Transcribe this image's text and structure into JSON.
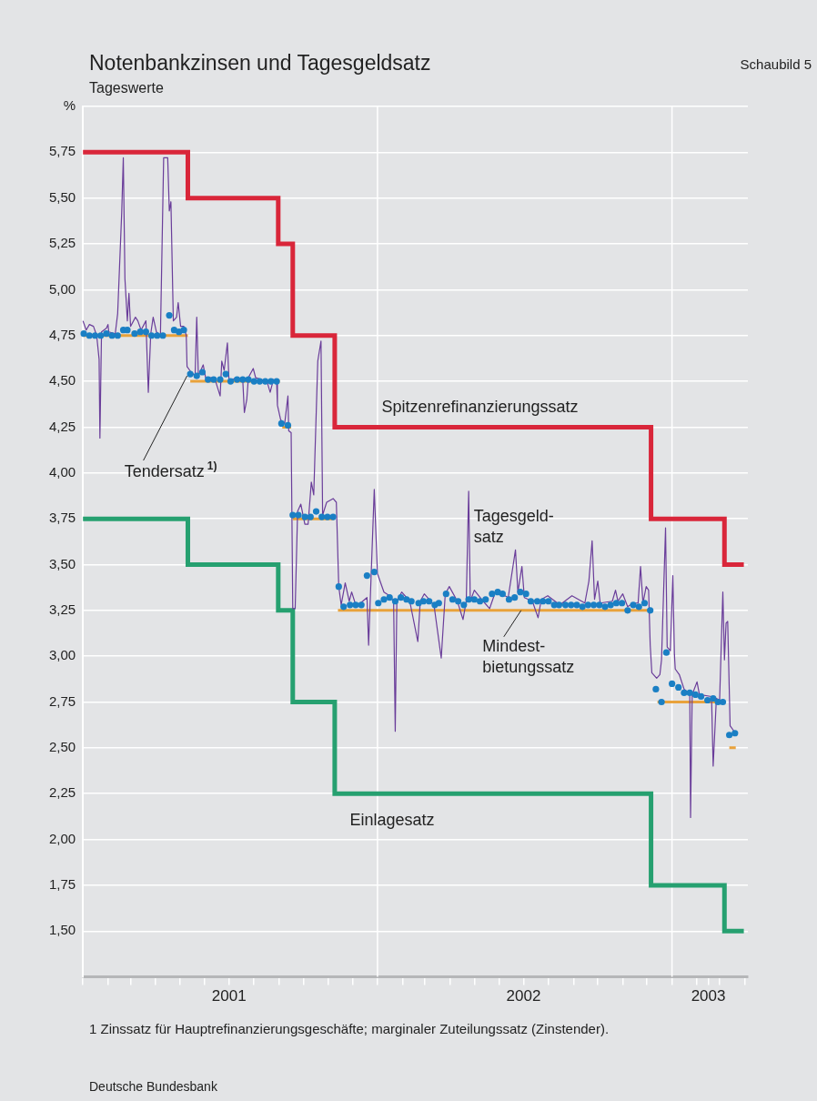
{
  "chart_data": {
    "type": "line",
    "title": "Notenbankzinsen und Tagesgeldsatz",
    "subtitle": "Tageswerte",
    "xlim": [
      "2001-01-01",
      "2003-04-05"
    ],
    "xticks": [
      {
        "value": "2001-01-01",
        "label": null
      },
      {
        "value": "2001-02-01",
        "label": null
      },
      {
        "value": "2001-03-01",
        "label": null
      },
      {
        "value": "2001-04-01",
        "label": null
      },
      {
        "value": "2001-05-01",
        "label": null
      },
      {
        "value": "2001-06-01",
        "label": null
      },
      {
        "value": "2001-07-01",
        "label": "2001"
      },
      {
        "value": "2001-08-01",
        "label": null
      },
      {
        "value": "2001-09-01",
        "label": null
      },
      {
        "value": "2001-10-01",
        "label": null
      },
      {
        "value": "2001-11-01",
        "label": null
      },
      {
        "value": "2001-12-01",
        "label": null
      },
      {
        "value": "2002-01-01",
        "label": null
      },
      {
        "value": "2002-02-01",
        "label": null
      },
      {
        "value": "2002-03-01",
        "label": null
      },
      {
        "value": "2002-04-01",
        "label": null
      },
      {
        "value": "2002-05-01",
        "label": null
      },
      {
        "value": "2002-06-01",
        "label": null
      },
      {
        "value": "2002-07-01",
        "label": "2002"
      },
      {
        "value": "2002-08-01",
        "label": null
      },
      {
        "value": "2002-09-01",
        "label": null
      },
      {
        "value": "2002-10-01",
        "label": null
      },
      {
        "value": "2002-11-01",
        "label": null
      },
      {
        "value": "2002-12-01",
        "label": null
      },
      {
        "value": "2003-01-01",
        "label": null
      },
      {
        "value": "2003-02-01",
        "label": null
      },
      {
        "value": "2003-02-15",
        "label": "2003"
      },
      {
        "value": "2003-03-01",
        "label": null
      },
      {
        "value": "2003-04-01",
        "label": null
      }
    ],
    "ylim": [
      1.25,
      6.0
    ],
    "yticks": [
      {
        "value": 1.5,
        "label": "1,50"
      },
      {
        "value": 1.75,
        "label": "1,75"
      },
      {
        "value": 2.0,
        "label": "2,00"
      },
      {
        "value": 2.25,
        "label": "2,25"
      },
      {
        "value": 2.5,
        "label": "2,50"
      },
      {
        "value": 2.75,
        "label": "2,75"
      },
      {
        "value": 3.0,
        "label": "3,00"
      },
      {
        "value": 3.25,
        "label": "3,25"
      },
      {
        "value": 3.5,
        "label": "3,50"
      },
      {
        "value": 3.75,
        "label": "3,75"
      },
      {
        "value": 4.0,
        "label": "4,00"
      },
      {
        "value": 4.25,
        "label": "4,25"
      },
      {
        "value": 4.5,
        "label": "4,50"
      },
      {
        "value": 4.75,
        "label": "4,75"
      },
      {
        "value": 5.0,
        "label": "5,00"
      },
      {
        "value": 5.25,
        "label": "5,25"
      },
      {
        "value": 5.5,
        "label": "5,50"
      },
      {
        "value": 5.75,
        "label": "5,75"
      },
      {
        "value": 6.0,
        "label": "%"
      }
    ],
    "grid": "y",
    "legend": false,
    "ref_lines": [
      {
        "axis": "x",
        "value": "2002-01-01",
        "color": "#ffffff"
      },
      {
        "axis": "x",
        "value": "2003-01-01",
        "color": "#ffffff"
      }
    ],
    "series": [
      {
        "type": "step",
        "color": "#d9263a",
        "x": [
          "2001-01-01",
          "2001-05-11",
          "2001-08-31",
          "2001-09-18",
          "2001-11-09",
          "2002-12-06",
          "2003-03-07",
          "2003-03-31"
        ],
        "values": [
          5.75,
          5.5,
          5.25,
          4.75,
          4.25,
          3.75,
          3.5,
          3.5
        ]
      },
      {
        "type": "step",
        "color": "#26a070",
        "x": [
          "2001-01-01",
          "2001-05-11",
          "2001-08-31",
          "2001-09-18",
          "2001-11-09",
          "2002-12-06",
          "2003-03-07",
          "2003-03-31"
        ],
        "values": [
          3.75,
          3.5,
          3.25,
          2.75,
          2.25,
          1.75,
          1.5,
          1.5
        ]
      },
      {
        "type": "line",
        "color": "#e9a23b",
        "x": [
          "2001-01-01",
          "2001-05-11",
          "2001-05-12",
          "2001-05-14",
          "2001-09-02",
          "2001-09-03",
          "2001-09-05",
          "2001-09-16",
          "2001-09-17",
          "2001-09-18",
          "2001-11-08",
          "2001-11-11",
          "2001-11-13",
          "2002-12-05",
          "2002-12-09",
          "2002-12-14",
          "2003-02-28",
          "2003-03-06",
          "2003-03-13",
          "2003-03-21"
        ],
        "values": [
          4.75,
          4.75,
          null,
          4.5,
          4.5,
          null,
          4.25,
          4.25,
          null,
          3.75,
          3.75,
          null,
          3.25,
          3.25,
          null,
          2.75,
          2.75,
          null,
          2.5,
          2.5
        ]
      },
      {
        "type": "line",
        "color": "#6a3d9a",
        "x": [
          "2001-01-01",
          "2001-01-05",
          "2001-01-09",
          "2001-01-14",
          "2001-01-18",
          "2001-01-21",
          "2001-01-22",
          "2001-01-24",
          "2001-01-30",
          "2001-02-01",
          "2001-02-02",
          "2001-02-10",
          "2001-02-13",
          "2001-02-18",
          "2001-02-20",
          "2001-02-22",
          "2001-02-25",
          "2001-02-27",
          "2001-03-01",
          "2001-03-07",
          "2001-03-10",
          "2001-03-14",
          "2001-03-20",
          "2001-03-23",
          "2001-03-26",
          "2001-03-29",
          "2001-04-02",
          "2001-04-07",
          "2001-04-11",
          "2001-04-16",
          "2001-04-18",
          "2001-04-20",
          "2001-04-23",
          "2001-04-27",
          "2001-04-29",
          "2001-05-02",
          "2001-05-06",
          "2001-05-09",
          "2001-05-10",
          "2001-05-15",
          "2001-05-20",
          "2001-05-22",
          "2001-05-24",
          "2001-05-27",
          "2001-05-30",
          "2001-06-02",
          "2001-06-13",
          "2001-06-20",
          "2001-06-22",
          "2001-06-25",
          "2001-06-29",
          "2001-07-01",
          "2001-07-10",
          "2001-07-18",
          "2001-07-20",
          "2001-07-23",
          "2001-07-25",
          "2001-07-31",
          "2001-08-03",
          "2001-08-17",
          "2001-08-21",
          "2001-08-25",
          "2001-08-29",
          "2001-08-30",
          "2001-09-03",
          "2001-09-08",
          "2001-09-12",
          "2001-09-13",
          "2001-09-16",
          "2001-09-18",
          "2001-09-21",
          "2001-09-24",
          "2001-09-28",
          "2001-10-03",
          "2001-10-07",
          "2001-10-11",
          "2001-10-14",
          "2001-10-19",
          "2001-10-23",
          "2001-10-25",
          "2001-10-30",
          "2001-11-07",
          "2001-11-11",
          "2001-11-14",
          "2001-11-17",
          "2001-11-22",
          "2001-11-27",
          "2001-11-30",
          "2001-12-05",
          "2001-12-11",
          "2001-12-19",
          "2001-12-21",
          "2001-12-28",
          "2002-01-01",
          "2002-01-09",
          "2002-01-16",
          "2002-01-21",
          "2002-01-23",
          "2002-01-25",
          "2002-01-31",
          "2002-02-10",
          "2002-02-20",
          "2002-02-23",
          "2002-02-28",
          "2002-03-12",
          "2002-03-21",
          "2002-03-26",
          "2002-03-31",
          "2002-04-10",
          "2002-04-17",
          "2002-04-21",
          "2002-04-24",
          "2002-04-26",
          "2002-05-01",
          "2002-05-12",
          "2002-05-20",
          "2002-05-27",
          "2002-06-08",
          "2002-06-12",
          "2002-06-21",
          "2002-06-24",
          "2002-06-29",
          "2002-07-02",
          "2002-07-12",
          "2002-07-19",
          "2002-07-23",
          "2002-07-31",
          "2002-08-15",
          "2002-08-30",
          "2002-09-15",
          "2002-09-20",
          "2002-09-24",
          "2002-09-27",
          "2002-10-01",
          "2002-10-04",
          "2002-10-19",
          "2002-10-23",
          "2002-10-26",
          "2002-11-01",
          "2002-11-07",
          "2002-11-14",
          "2002-11-20",
          "2002-11-23",
          "2002-11-26",
          "2002-11-30",
          "2002-12-03",
          "2002-12-05",
          "2002-12-07",
          "2002-12-13",
          "2002-12-17",
          "2002-12-19",
          "2002-12-24",
          "2002-12-26",
          "2002-12-30",
          "2003-01-02",
          "2003-01-04",
          "2003-01-05",
          "2003-01-10",
          "2003-01-16",
          "2003-01-22",
          "2003-01-23",
          "2003-01-24",
          "2003-01-26",
          "2003-02-01",
          "2003-02-04",
          "2003-02-19",
          "2003-02-21",
          "2003-02-25",
          "2003-03-01",
          "2003-03-05",
          "2003-03-07",
          "2003-03-09",
          "2003-03-11",
          "2003-03-14",
          "2003-03-19"
        ],
        "values": [
          4.83,
          4.78,
          4.81,
          4.8,
          4.75,
          4.62,
          4.19,
          4.77,
          4.79,
          4.81,
          4.77,
          4.76,
          4.87,
          5.42,
          5.72,
          5.06,
          4.83,
          4.98,
          4.8,
          4.85,
          4.83,
          4.78,
          4.83,
          4.44,
          4.76,
          4.85,
          4.77,
          4.75,
          5.72,
          5.72,
          5.43,
          5.48,
          4.83,
          4.85,
          4.93,
          4.8,
          4.8,
          4.75,
          4.58,
          4.55,
          4.53,
          4.85,
          4.53,
          4.56,
          4.59,
          4.52,
          4.52,
          4.42,
          4.61,
          4.56,
          4.71,
          4.5,
          4.52,
          4.51,
          4.33,
          4.4,
          4.52,
          4.57,
          4.52,
          4.5,
          4.44,
          4.51,
          4.5,
          4.37,
          4.29,
          4.27,
          4.42,
          4.23,
          4.22,
          3.26,
          3.26,
          3.79,
          3.83,
          3.72,
          3.72,
          3.95,
          3.88,
          4.61,
          4.72,
          3.77,
          3.84,
          3.86,
          3.84,
          3.38,
          3.28,
          3.4,
          3.3,
          3.35,
          3.28,
          3.29,
          3.32,
          3.06,
          3.91,
          3.45,
          3.35,
          3.33,
          3.3,
          2.59,
          3.3,
          3.35,
          3.3,
          3.08,
          3.3,
          3.34,
          3.28,
          2.99,
          3.34,
          3.38,
          3.3,
          3.2,
          3.3,
          3.9,
          3.3,
          3.36,
          3.3,
          3.26,
          3.35,
          3.33,
          3.32,
          3.58,
          3.35,
          3.49,
          3.32,
          3.3,
          3.21,
          3.31,
          3.33,
          3.28,
          3.33,
          3.29,
          3.41,
          3.63,
          3.31,
          3.41,
          3.29,
          3.3,
          3.36,
          3.3,
          3.34,
          3.27,
          3.29,
          3.29,
          3.49,
          3.29,
          3.38,
          3.36,
          3.06,
          2.91,
          2.88,
          2.9,
          2.98,
          3.7,
          3.05,
          3.03,
          3.44,
          3.01,
          2.93,
          2.9,
          2.82,
          2.8,
          2.81,
          2.12,
          2.79,
          2.86,
          2.79,
          2.78,
          2.4,
          2.77,
          2.76,
          3.35,
          2.98,
          3.18,
          3.19,
          2.62,
          2.59
        ]
      },
      {
        "type": "scatter",
        "color": "#1a7fc4",
        "marker": "circle",
        "x": [
          "2001-01-02",
          "2001-01-09",
          "2001-01-16",
          "2001-01-23",
          "2001-01-30",
          "2001-02-06",
          "2001-02-13",
          "2001-02-20",
          "2001-02-25",
          "2001-03-06",
          "2001-03-13",
          "2001-03-20",
          "2001-03-27",
          "2001-04-03",
          "2001-04-10",
          "2001-04-18",
          "2001-04-24",
          "2001-04-30",
          "2001-05-06",
          "2001-05-14",
          "2001-05-22",
          "2001-05-29",
          "2001-06-05",
          "2001-06-12",
          "2001-06-20",
          "2001-06-27",
          "2001-07-03",
          "2001-07-11",
          "2001-07-18",
          "2001-07-25",
          "2001-08-01",
          "2001-08-08",
          "2001-08-15",
          "2001-08-22",
          "2001-08-29",
          "2001-09-04",
          "2001-09-12",
          "2001-09-18",
          "2001-09-25",
          "2001-10-03",
          "2001-10-10",
          "2001-10-17",
          "2001-10-24",
          "2001-10-31",
          "2001-11-07",
          "2001-11-14",
          "2001-11-20",
          "2001-11-28",
          "2001-12-05",
          "2001-12-12",
          "2001-12-19",
          "2001-12-28",
          "2002-01-02",
          "2002-01-09",
          "2002-01-16",
          "2002-01-23",
          "2002-01-30",
          "2002-02-06",
          "2002-02-12",
          "2002-02-21",
          "2002-02-27",
          "2002-03-06",
          "2002-03-13",
          "2002-03-18",
          "2002-03-27",
          "2002-04-04",
          "2002-04-11",
          "2002-04-18",
          "2002-04-24",
          "2002-05-01",
          "2002-05-08",
          "2002-05-15",
          "2002-05-23",
          "2002-05-30",
          "2002-06-05",
          "2002-06-13",
          "2002-06-20",
          "2002-06-27",
          "2002-07-04",
          "2002-07-10",
          "2002-07-18",
          "2002-07-25",
          "2002-08-01",
          "2002-08-08",
          "2002-08-14",
          "2002-08-22",
          "2002-08-29",
          "2002-09-05",
          "2002-09-12",
          "2002-09-19",
          "2002-09-26",
          "2002-10-03",
          "2002-10-10",
          "2002-10-17",
          "2002-10-24",
          "2002-10-31",
          "2002-11-07",
          "2002-11-14",
          "2002-11-21",
          "2002-11-28",
          "2002-12-05",
          "2002-12-12",
          "2002-12-19",
          "2002-12-25",
          "2003-01-01",
          "2003-01-09",
          "2003-01-16",
          "2003-01-23",
          "2003-01-30",
          "2003-02-06",
          "2003-02-14",
          "2003-02-21",
          "2003-02-27",
          "2003-03-05",
          "2003-03-13",
          "2003-03-20"
        ],
        "values": [
          4.76,
          4.75,
          4.75,
          4.75,
          4.76,
          4.75,
          4.75,
          4.78,
          4.78,
          4.76,
          4.77,
          4.77,
          4.75,
          4.75,
          4.75,
          4.86,
          4.78,
          4.77,
          4.78,
          4.54,
          4.53,
          4.55,
          4.51,
          4.51,
          4.51,
          4.54,
          4.5,
          4.51,
          4.51,
          4.51,
          4.5,
          4.5,
          4.5,
          4.5,
          4.5,
          4.27,
          4.26,
          3.77,
          3.77,
          3.76,
          3.76,
          3.79,
          3.76,
          3.76,
          3.76,
          3.38,
          3.27,
          3.28,
          3.28,
          3.28,
          3.44,
          3.46,
          3.29,
          3.31,
          3.32,
          3.3,
          3.32,
          3.31,
          3.3,
          3.29,
          3.3,
          3.3,
          3.28,
          3.29,
          3.34,
          3.31,
          3.3,
          3.28,
          3.31,
          3.31,
          3.3,
          3.31,
          3.34,
          3.35,
          3.34,
          3.31,
          3.32,
          3.35,
          3.34,
          3.3,
          3.3,
          3.3,
          3.3,
          3.28,
          3.28,
          3.28,
          3.28,
          3.28,
          3.27,
          3.28,
          3.28,
          3.28,
          3.27,
          3.28,
          3.29,
          3.29,
          3.25,
          3.28,
          3.27,
          3.29,
          3.25,
          2.82,
          2.75,
          3.02,
          2.85,
          2.83,
          2.8,
          2.8,
          2.79,
          2.78,
          2.76,
          2.77,
          2.75,
          2.75,
          2.57,
          2.58
        ]
      }
    ],
    "annotations": [
      "Spitzenrefinanzierungssatz",
      {
        "text": "Tendersatz$^{1)}$",
        "x": "2001-05-10",
        "y": 4.53
      },
      "Tagesgeld-\nsatz",
      {
        "text": "Mindest-\nbietungssatz",
        "x": "2002-06-28",
        "y": 3.25
      },
      "Einlagesatz",
      "Schaubild 5",
      "1 Zinssatz für Hauptrefinanzierungsgeschäfte; marginaler Zuteilungssatz (Zinstender).",
      "Deutsche Bundesbank"
    ]
  }
}
